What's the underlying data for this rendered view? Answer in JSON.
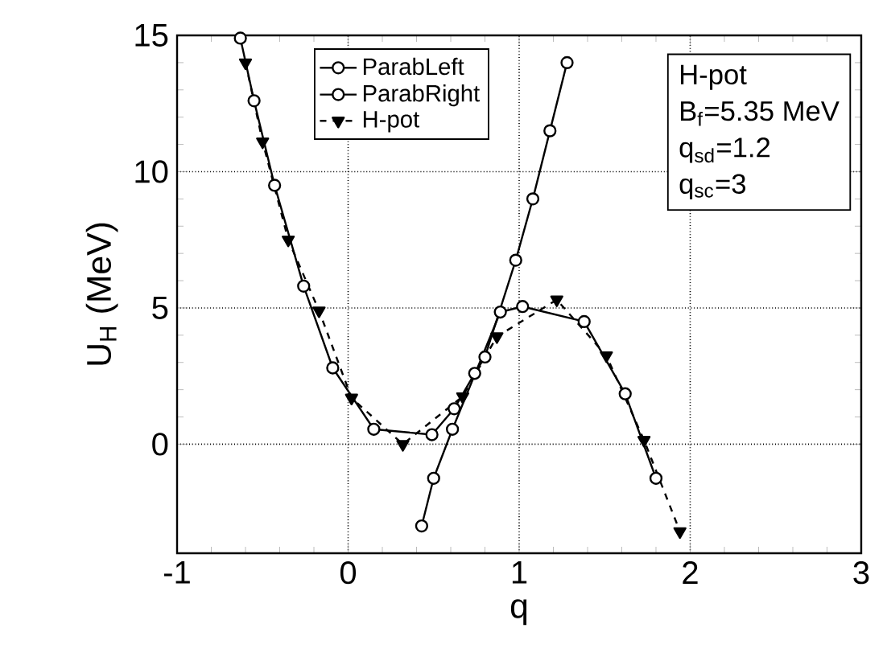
{
  "chart_data": {
    "type": "line",
    "xlabel": "q",
    "ylabel": "U$_{H}$ (MeV)",
    "xlim": [
      -1,
      3
    ],
    "ylim": [
      -4,
      15
    ],
    "xticks": [
      -1,
      0,
      1,
      2,
      3
    ],
    "yticks": [
      0,
      5,
      10,
      15
    ],
    "grid": true,
    "legend": "top left",
    "series": [
      {
        "name": "ParabLeft",
        "color": "#000000",
        "marker": "circle",
        "line_style": "solid",
        "x": [
          -0.63,
          -0.55,
          -0.43,
          -0.26,
          -0.09,
          0.15,
          0.49,
          0.62,
          0.74,
          0.8,
          0.98,
          1.08,
          1.18,
          1.28
        ],
        "values": [
          14.9,
          12.6,
          9.5,
          5.8,
          2.8,
          0.55,
          0.35,
          1.3,
          2.6,
          3.2,
          6.75,
          9,
          11.5,
          14
        ]
      },
      {
        "name": "ParabRight",
        "color": "#000000",
        "marker": "circle",
        "line_style": "solid",
        "x": [
          0.43,
          0.5,
          0.61,
          0.89,
          1.02,
          1.38,
          1.62,
          1.8
        ],
        "values": [
          -3,
          -1.25,
          0.55,
          4.85,
          5.05,
          4.5,
          1.85,
          -1.25
        ]
      },
      {
        "name": "H-pot",
        "color": "#000000",
        "marker": "triangle",
        "line_style": "dashed",
        "x": [
          -0.6,
          -0.5,
          -0.35,
          -0.17,
          0.02,
          0.32,
          0.67,
          0.87,
          1.22,
          1.51,
          1.73,
          1.94
        ],
        "values": [
          14,
          11.1,
          7.5,
          4.9,
          1.7,
          0,
          1.75,
          3.95,
          5.3,
          3.25,
          0.15,
          -3.2
        ]
      }
    ],
    "annotations": [
      "H-pot",
      "B$_{f}$=5.35 MeV",
      "q$_{sd}$=1.2",
      "q$_{sc}$=3"
    ]
  }
}
